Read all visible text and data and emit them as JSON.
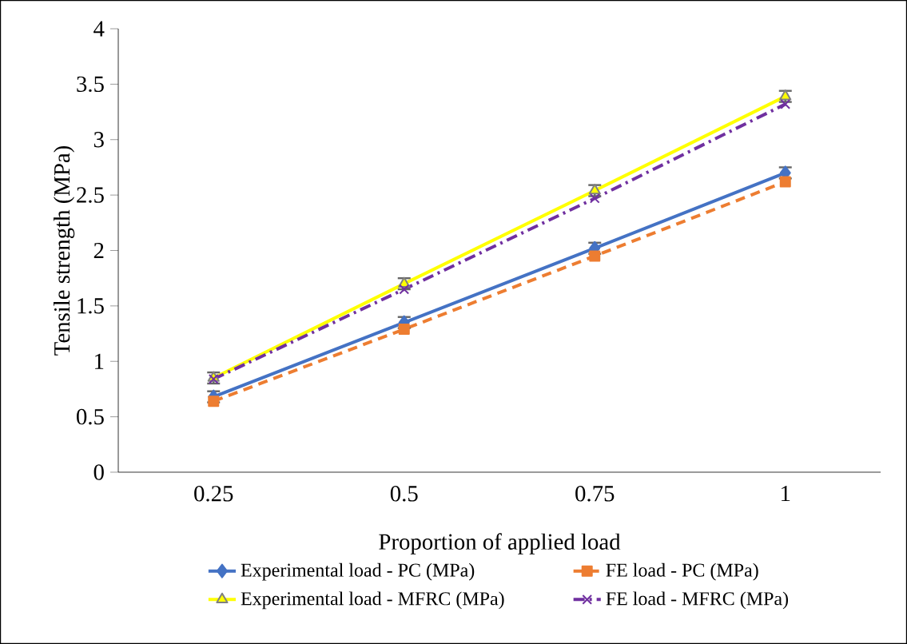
{
  "chart_data": {
    "type": "line",
    "xlabel": "Proportion of applied load",
    "ylabel": "Tensile strength (MPa)",
    "categories": [
      "0.25",
      "0.5",
      "0.75",
      "1"
    ],
    "ylim": [
      0,
      4
    ],
    "yticks": [
      0,
      0.5,
      1,
      1.5,
      2,
      2.5,
      3,
      3.5,
      4
    ],
    "grid": false,
    "legend": "bottom",
    "series": [
      {
        "name": "Experimental load - PC (MPa)",
        "color": "#4472c4",
        "marker": "diamond",
        "line_style": "solid",
        "values": [
          0.68,
          1.35,
          2.02,
          2.7
        ],
        "errors": [
          0.05,
          0.05,
          0.05,
          0.05
        ]
      },
      {
        "name": "FE load - PC (MPa)",
        "color": "#ed7d31",
        "marker": "square",
        "line_style": "dashed",
        "values": [
          0.64,
          1.29,
          1.95,
          2.62
        ]
      },
      {
        "name": "Experimental load - MFRC (MPa)",
        "color": "#ffff00",
        "marker": "triangle",
        "line_style": "solid",
        "values": [
          0.85,
          1.7,
          2.54,
          3.39
        ],
        "errors": [
          0.05,
          0.05,
          0.05,
          0.05
        ]
      },
      {
        "name": "FE load - MFRC (MPa)",
        "color": "#7030a0",
        "marker": "cross",
        "line_style": "dashdot",
        "values": [
          0.84,
          1.65,
          2.47,
          3.32
        ]
      }
    ]
  }
}
